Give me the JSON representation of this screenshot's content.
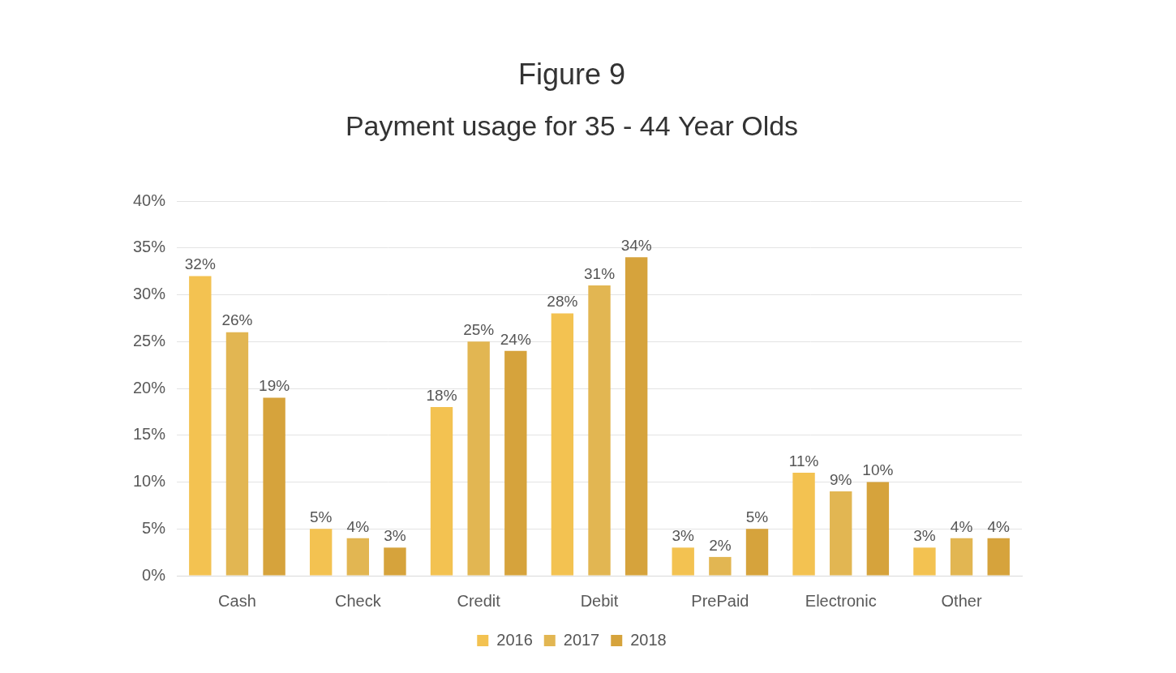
{
  "chart_data": {
    "type": "bar",
    "title": "Figure 9",
    "subtitle": "Payment usage for 35 - 44 Year Olds",
    "categories": [
      "Cash",
      "Check",
      "Credit",
      "Debit",
      "PrePaid",
      "Electronic",
      "Other"
    ],
    "series": [
      {
        "name": "2016",
        "color": "#f3c251",
        "values": [
          32,
          5,
          18,
          28,
          3,
          11,
          3
        ],
        "value_labels": [
          "32%",
          "5%",
          "18%",
          "28%",
          "3%",
          "11%",
          "3%"
        ]
      },
      {
        "name": "2017",
        "color": "#e2b652",
        "values": [
          26,
          4,
          25,
          31,
          2,
          9,
          4
        ],
        "value_labels": [
          "26%",
          "4%",
          "25%",
          "31%",
          "2%",
          "9%",
          "4%"
        ]
      },
      {
        "name": "2018",
        "color": "#d6a33c",
        "values": [
          19,
          3,
          24,
          34,
          5,
          10,
          4
        ],
        "value_labels": [
          "19%",
          "3%",
          "24%",
          "34%",
          "5%",
          "10%",
          "4%"
        ]
      }
    ],
    "ylim": [
      0,
      40
    ],
    "yticks": [
      {
        "value": 0,
        "label": "0%"
      },
      {
        "value": 5,
        "label": "5%"
      },
      {
        "value": 10,
        "label": "10%"
      },
      {
        "value": 15,
        "label": "15%"
      },
      {
        "value": 20,
        "label": "20%"
      },
      {
        "value": 25,
        "label": "25%"
      },
      {
        "value": 30,
        "label": "30%"
      },
      {
        "value": 35,
        "label": "35%"
      },
      {
        "value": 40,
        "label": "40%"
      }
    ],
    "grid": true,
    "legend": "bottom",
    "data_labels": true
  }
}
